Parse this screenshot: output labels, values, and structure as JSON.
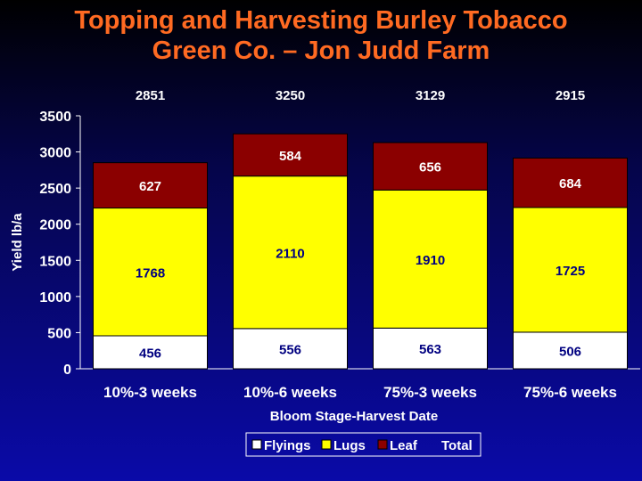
{
  "title_lines": [
    "Topping and Harvesting Burley Tobacco",
    "Green Co. – Jon Judd Farm"
  ],
  "colors": {
    "title": "#ff6a22",
    "flyings": "#ffffff",
    "lugs": "#ffff00",
    "leaf": "#8b0000",
    "leaf_label": "#ffffff",
    "lower_label": "#000080"
  },
  "chart_data": {
    "type": "bar",
    "stacked": true,
    "categories": [
      "10%-3 weeks",
      "10%-6 weeks",
      "75%-3 weeks",
      "75%-6 weeks"
    ],
    "series": [
      {
        "name": "Flyings",
        "values": [
          456,
          556,
          563,
          506
        ]
      },
      {
        "name": "Lugs",
        "values": [
          1768,
          2110,
          1910,
          1725
        ]
      },
      {
        "name": "Leaf",
        "values": [
          627,
          584,
          656,
          684
        ]
      }
    ],
    "totals": [
      2851,
      3250,
      3129,
      2915
    ],
    "legend_extra": "Total",
    "xlabel": "Bloom Stage-Harvest Date",
    "ylabel": "Yield lb/a",
    "ylim": [
      0,
      3500
    ],
    "yticks": [
      0,
      500,
      1000,
      1500,
      2000,
      2500,
      3000,
      3500
    ],
    "legend_position": "bottom-center",
    "grid": false
  }
}
